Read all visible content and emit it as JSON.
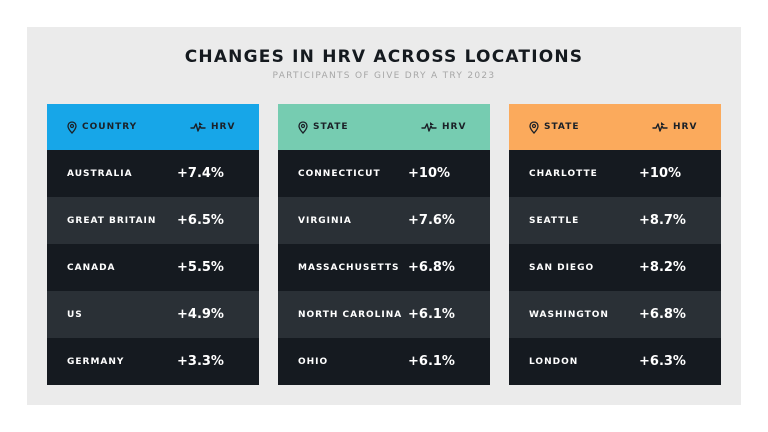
{
  "title": "CHANGES IN HRV ACROSS LOCATIONS",
  "subtitle": "PARTICIPANTS OF GIVE DRY A TRY 2023",
  "colors": {
    "header_blue": "#17a6e8",
    "header_green": "#76ccb1",
    "header_orange": "#fbaa5c",
    "row_dark": "#151a20",
    "row_light": "#2a3036",
    "background": "#ebebeb"
  },
  "chart_data": [
    {
      "type": "table",
      "columns": [
        "COUNTRY",
        "HRV"
      ],
      "rows": [
        {
          "name": "AUSTRALIA",
          "value": "+7.4%"
        },
        {
          "name": "GREAT BRITAIN",
          "value": "+6.5%"
        },
        {
          "name": "CANADA",
          "value": "+5.5%"
        },
        {
          "name": "US",
          "value": "+4.9%"
        },
        {
          "name": "GERMANY",
          "value": "+3.3%"
        }
      ]
    },
    {
      "type": "table",
      "columns": [
        "STATE",
        "HRV"
      ],
      "rows": [
        {
          "name": "CONNECTICUT",
          "value": "+10%"
        },
        {
          "name": "VIRGINIA",
          "value": "+7.6%"
        },
        {
          "name": "MASSACHUSETTS",
          "value": "+6.8%"
        },
        {
          "name": "NORTH CAROLINA",
          "value": "+6.1%"
        },
        {
          "name": "OHIO",
          "value": "+6.1%"
        }
      ]
    },
    {
      "type": "table",
      "columns": [
        "STATE",
        "HRV"
      ],
      "rows": [
        {
          "name": "CHARLOTTE",
          "value": "+10%"
        },
        {
          "name": "SEATTLE",
          "value": "+8.7%"
        },
        {
          "name": "SAN DIEGO",
          "value": "+8.2%"
        },
        {
          "name": "WASHINGTON",
          "value": "+6.8%"
        },
        {
          "name": "LONDON",
          "value": "+6.3%"
        }
      ]
    }
  ],
  "icons": {
    "location": "location-pin-icon",
    "hrv": "heart-rate-plane-icon"
  }
}
